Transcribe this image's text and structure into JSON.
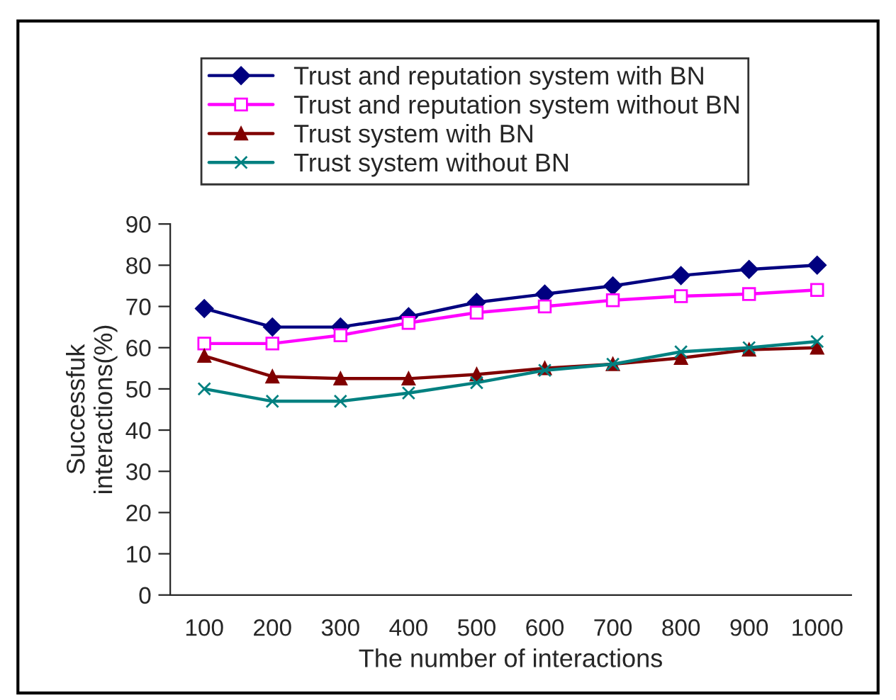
{
  "chart_data": {
    "type": "line",
    "xlabel": "The number of interactions",
    "ylabel": "Successfuk\ninteractions(%)",
    "categories": [
      "100",
      "200",
      "300",
      "400",
      "500",
      "600",
      "700",
      "800",
      "900",
      "1000"
    ],
    "series": [
      {
        "name": "Trust and reputation system with BN",
        "color": "#000080",
        "marker": "diamond",
        "values": [
          69.5,
          65,
          65,
          67.5,
          71,
          73,
          75,
          77.5,
          79,
          80
        ]
      },
      {
        "name": "Trust and reputation system without BN",
        "color": "#ff00ff",
        "marker": "square",
        "values": [
          61,
          61,
          63,
          66,
          68.5,
          70,
          71.5,
          72.5,
          73,
          74
        ]
      },
      {
        "name": "Trust system with BN",
        "color": "#800000",
        "marker": "triangle",
        "values": [
          58,
          53,
          52.5,
          52.5,
          53.5,
          55,
          56,
          57.5,
          59.5,
          60
        ]
      },
      {
        "name": "Trust system without BN",
        "color": "#008080",
        "marker": "cross",
        "values": [
          50,
          47,
          47,
          49,
          51.5,
          54.5,
          56,
          59,
          60,
          61.5
        ]
      }
    ],
    "ylim": [
      0,
      90
    ],
    "yticks": [
      0,
      10,
      20,
      30,
      40,
      50,
      60,
      70,
      80,
      90
    ],
    "grid": false,
    "legend": "top",
    "line_style": "solid"
  }
}
